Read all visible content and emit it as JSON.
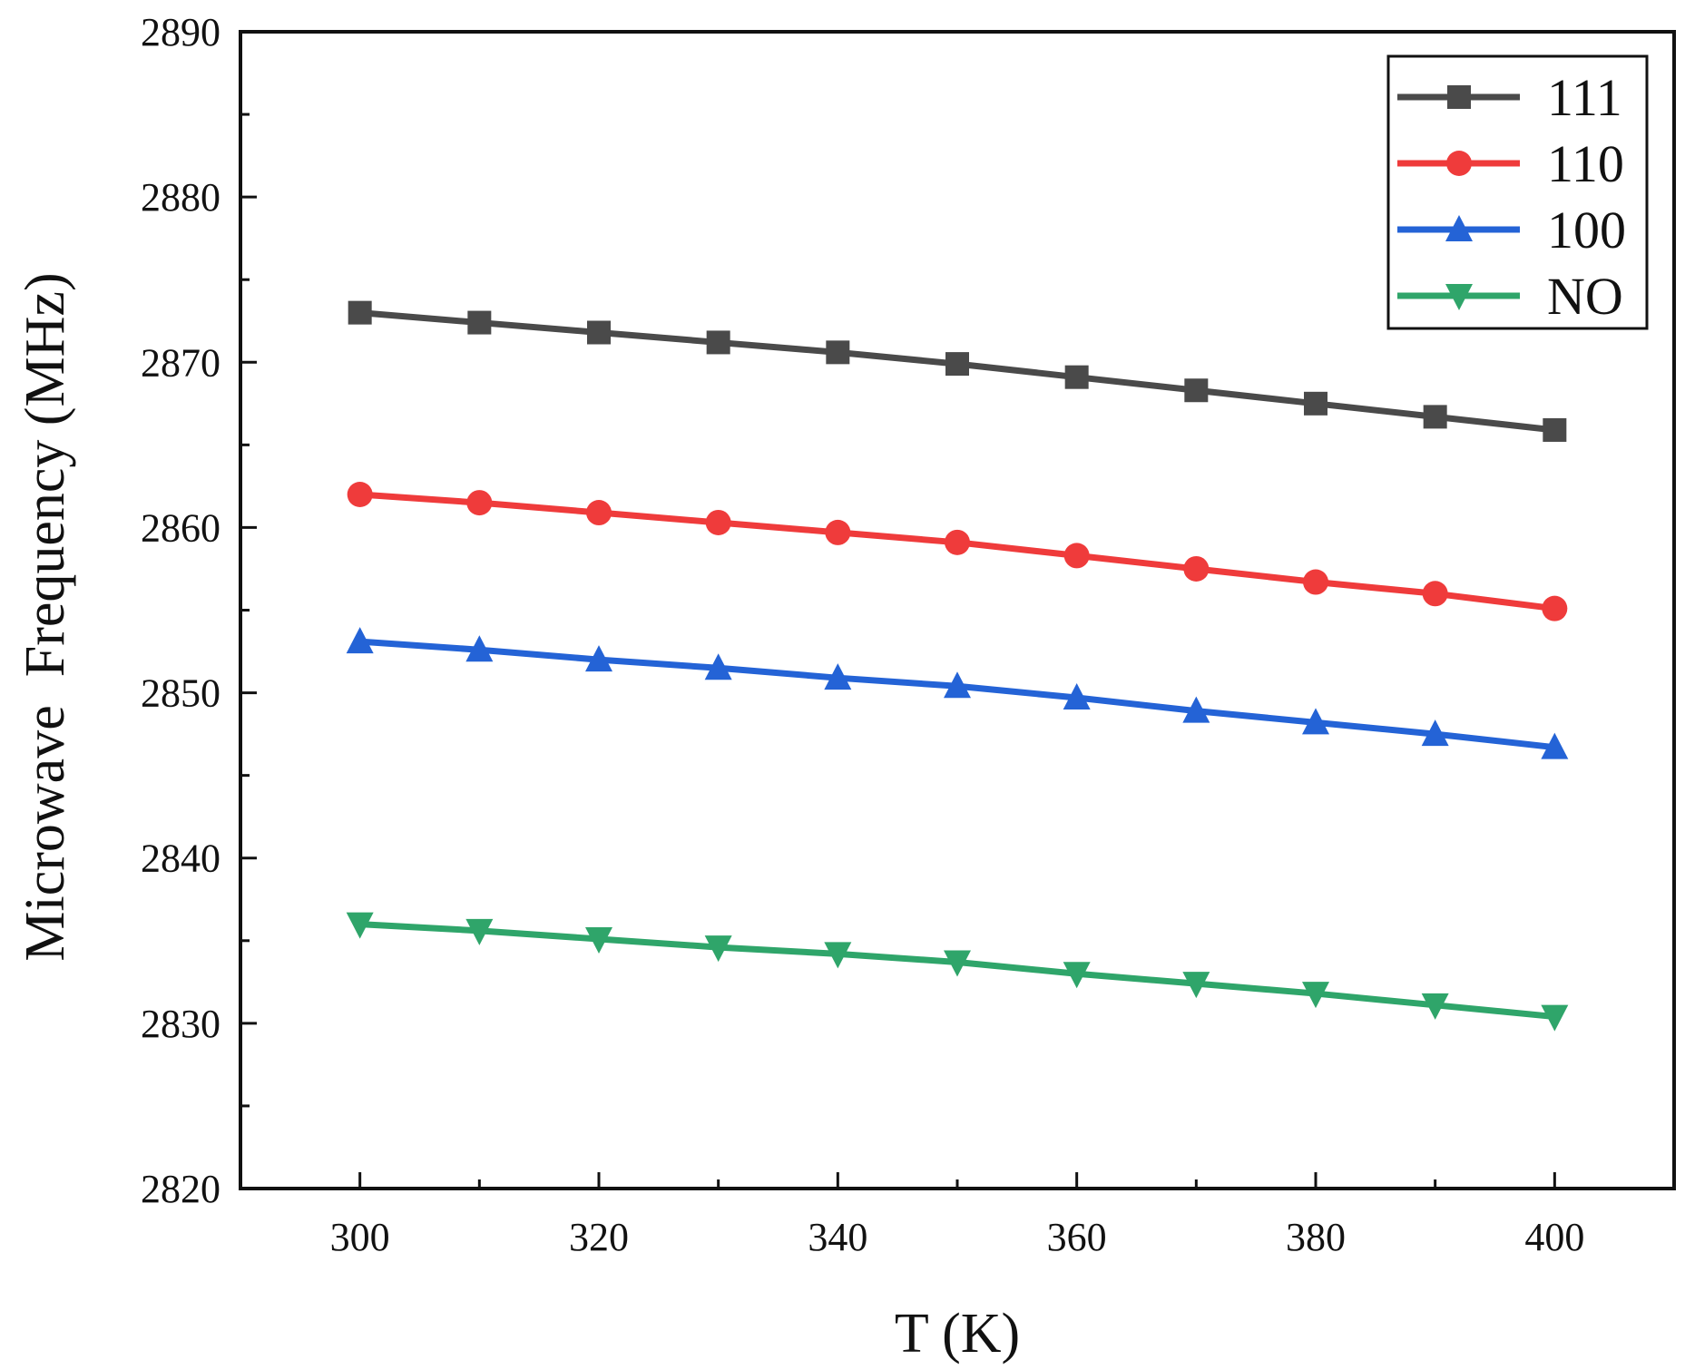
{
  "chart_data": {
    "type": "line",
    "title": "",
    "xlabel": "T (K)",
    "ylabel": "Microwave  Frequency (MHz)",
    "xlim": [
      290,
      410
    ],
    "ylim": [
      2820,
      2890
    ],
    "x_ticks": [
      300,
      320,
      340,
      360,
      380,
      400
    ],
    "y_ticks": [
      2820,
      2830,
      2840,
      2850,
      2860,
      2870,
      2880,
      2890
    ],
    "x": [
      300,
      310,
      320,
      330,
      340,
      350,
      360,
      370,
      380,
      390,
      400
    ],
    "legend_position": "top-right",
    "grid": false,
    "series": [
      {
        "name": "111",
        "color": "#4a4a4a",
        "marker": "square",
        "values": [
          2873.0,
          2872.4,
          2871.8,
          2871.2,
          2870.6,
          2869.9,
          2869.1,
          2868.3,
          2867.5,
          2866.7,
          2865.9
        ]
      },
      {
        "name": "110",
        "color": "#ef3b3b",
        "marker": "circle",
        "values": [
          2862.0,
          2861.5,
          2860.9,
          2860.3,
          2859.7,
          2859.1,
          2858.3,
          2857.5,
          2856.7,
          2856.0,
          2855.1
        ]
      },
      {
        "name": "100",
        "color": "#2463d6",
        "marker": "triangle-up",
        "values": [
          2853.1,
          2852.6,
          2852.0,
          2851.5,
          2850.9,
          2850.4,
          2849.7,
          2848.9,
          2848.2,
          2847.5,
          2846.7
        ]
      },
      {
        "name": "NO",
        "color": "#2fa56a",
        "marker": "triangle-down",
        "values": [
          2836.0,
          2835.6,
          2835.1,
          2834.6,
          2834.2,
          2833.7,
          2833.0,
          2832.4,
          2831.8,
          2831.1,
          2830.4
        ]
      }
    ]
  }
}
